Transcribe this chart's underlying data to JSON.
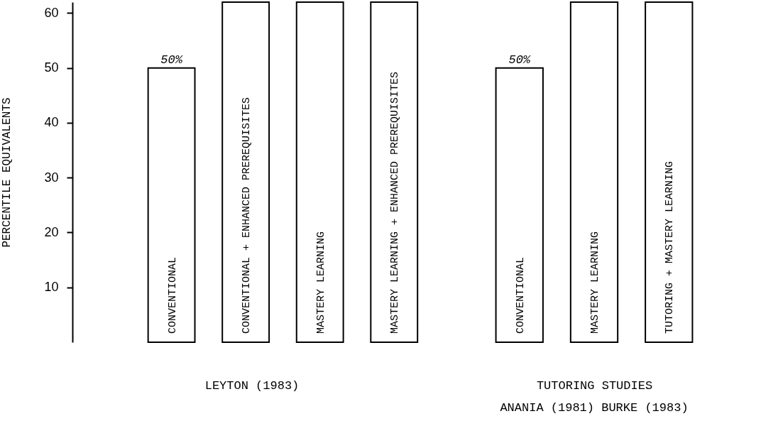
{
  "chart_data": [
    {
      "type": "bar",
      "xlabel": "LEYTON (1983)",
      "ylabel": "PERCENTILE EQUIVALENTS",
      "categories": [
        "CONVENTIONAL",
        "CONVENTIONAL + ENHANCED PREREQUISITES",
        "MASTERY LEARNING",
        "MASTERY LEARNING + ENHANCED PREREQUISITES"
      ],
      "values": [
        50,
        62,
        62,
        62
      ],
      "value_labels": [
        "50%",
        null,
        null,
        null
      ],
      "color": "#ffffff",
      "ylim": [
        0,
        62
      ],
      "yticks": [
        10,
        20,
        30,
        40,
        50,
        60
      ],
      "tick_labels": "y"
    },
    {
      "type": "bar",
      "xlabel": "TUTORING STUDIES",
      "annotations": [
        "ANANIA (1981) BURKE (1983)"
      ],
      "categories": [
        "CONVENTIONAL",
        "MASTERY LEARNING",
        "TUTORING + MASTERY LEARNING"
      ],
      "values": [
        50,
        62,
        62
      ],
      "value_labels": [
        "50%",
        null,
        null
      ],
      "color": "#ffffff",
      "ylim": [
        0,
        62
      ],
      "tick_labels": false
    }
  ]
}
